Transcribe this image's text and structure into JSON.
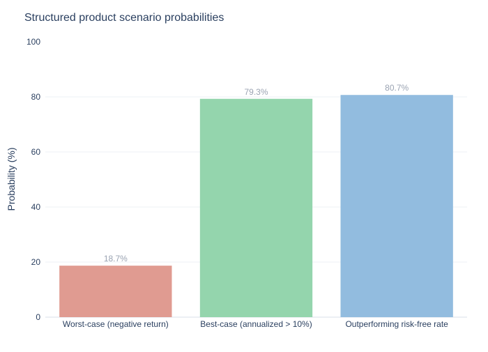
{
  "chart_data": {
    "type": "bar",
    "title": "Structured product scenario probabilities",
    "xlabel": "",
    "ylabel": "Probability (%)",
    "ylim": [
      0,
      100
    ],
    "yticks": [
      0,
      20,
      40,
      60,
      80,
      100
    ],
    "grid": true,
    "categories": [
      "Worst-case (negative return)",
      "Best-case (annualized > 10%)",
      "Outperforming risk-free rate"
    ],
    "values": [
      18.7,
      79.3,
      80.7
    ],
    "data_labels": [
      "18.7%",
      "79.3%",
      "80.7%"
    ],
    "colors": [
      "#e09b91",
      "#94d5ad",
      "#92bcdf"
    ]
  }
}
